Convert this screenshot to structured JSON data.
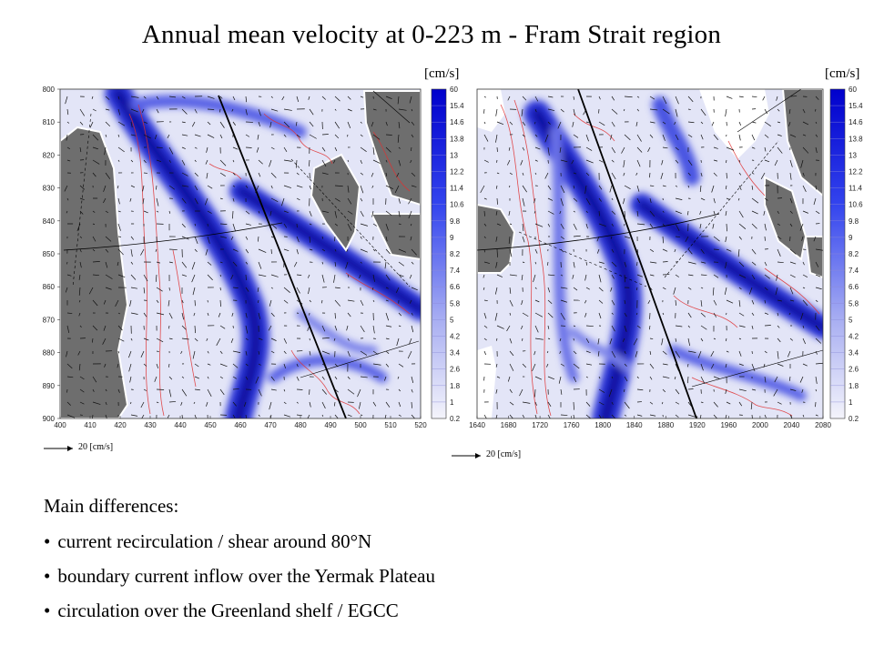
{
  "title": "Annual mean velocity at 0-223 m - Fram Strait region",
  "unit_label": "[cm/s]",
  "reference_vector_label": "20 [cm/s]",
  "colorbar_ticks": [
    "60",
    "15.4",
    "14.6",
    "13.8",
    "13",
    "12.2",
    "11.4",
    "10.6",
    "9.8",
    "9",
    "8.2",
    "7.4",
    "6.6",
    "5.8",
    "5",
    "4.2",
    "3.4",
    "2.6",
    "1.8",
    "1",
    "0.2"
  ],
  "left_map": {
    "y_ticks": [
      "800",
      "810",
      "820",
      "830",
      "840",
      "850",
      "860",
      "870",
      "880",
      "890",
      "900"
    ],
    "x_ticks": [
      "400",
      "410",
      "420",
      "430",
      "440",
      "450",
      "460",
      "470",
      "480",
      "490",
      "500",
      "510",
      "520"
    ]
  },
  "right_map": {
    "x_ticks": [
      "1640",
      "1680",
      "1720",
      "1760",
      "1800",
      "1840",
      "1880",
      "1920",
      "1960",
      "2000",
      "2040",
      "2080"
    ]
  },
  "notes": {
    "heading": "Main differences:",
    "bullets": [
      "current recirculation / shear around 80°N",
      "boundary current inflow over the Yermak Plateau",
      "circulation over the Greenland shelf / EGCC"
    ]
  }
}
